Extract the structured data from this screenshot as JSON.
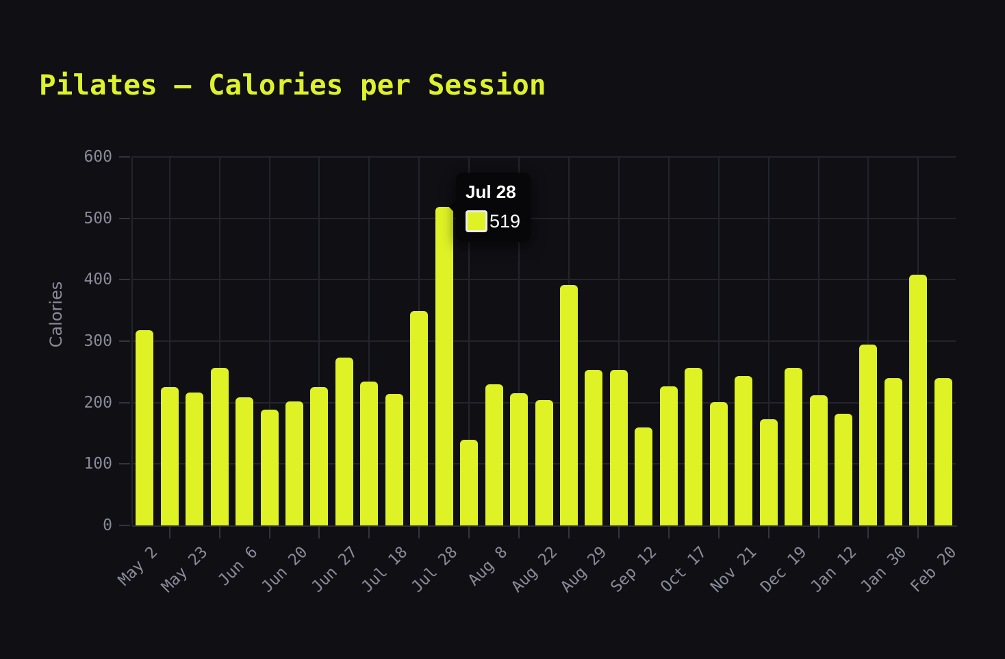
{
  "title": "Pilates — Calories per Session",
  "y_axis": {
    "name": "Calories"
  },
  "tooltip": {
    "date": "Jul 28",
    "value": "519",
    "bar_index": 12
  },
  "colors": {
    "background": "#0f0f14",
    "bar": "#def226",
    "title": "#ddf22b",
    "grid": "#24242c",
    "axis_line": "#2e2e38",
    "tick": "#34343f",
    "axis_label": "#8a8a99",
    "tooltip_bg": "#070709",
    "tooltip_text": "#ffffff",
    "swatch_border": "#ececec"
  },
  "chart_data": {
    "type": "bar",
    "title": "Pilates — Calories per Session",
    "xlabel": "",
    "ylabel": "Calories",
    "ylim": [
      0,
      600
    ],
    "y_tick_step": 100,
    "y_tick_labels": [
      "0",
      "100",
      "200",
      "300",
      "400",
      "500",
      "600"
    ],
    "grid": true,
    "legend": false,
    "categories": [
      "May 2",
      "",
      "May 23",
      "",
      "Jun 6",
      "",
      "Jun 20",
      "",
      "Jun 27",
      "",
      "Jul 18",
      "",
      "Jul 28",
      "",
      "Aug 8",
      "",
      "Aug 22",
      "",
      "Aug 29",
      "",
      "Sep 12",
      "",
      "Oct 17",
      "",
      "Nov 21",
      "",
      "Dec 19",
      "",
      "Jan 12",
      "",
      "Jan 30",
      "",
      "Feb 20"
    ],
    "values": [
      318,
      225,
      216,
      257,
      209,
      189,
      202,
      225,
      273,
      234,
      214,
      349,
      519,
      139,
      230,
      215,
      204,
      392,
      253,
      253,
      160,
      226,
      256,
      201,
      243,
      173,
      257,
      212,
      182,
      294,
      240,
      408,
      240
    ],
    "highlighted": {
      "category": "Jul 28",
      "value": 519,
      "index": 12
    }
  }
}
